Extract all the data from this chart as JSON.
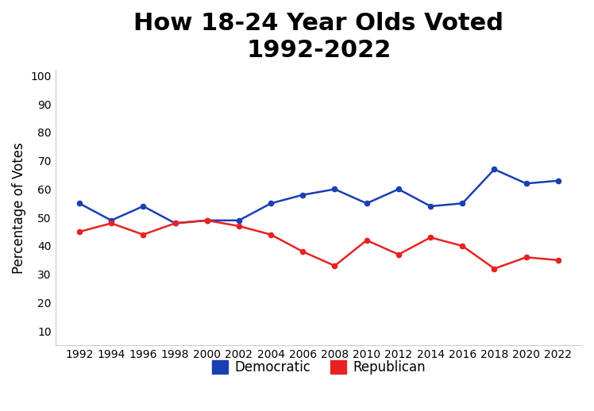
{
  "title": "How 18-24 Year Olds Voted\n1992-2022",
  "ylabel": "Percentage of Votes",
  "years": [
    1992,
    1994,
    1996,
    1998,
    2000,
    2002,
    2004,
    2006,
    2008,
    2010,
    2012,
    2014,
    2016,
    2018,
    2020,
    2022
  ],
  "democratic": [
    55,
    49,
    54,
    48,
    49,
    49,
    55,
    58,
    60,
    55,
    60,
    54,
    55,
    67,
    62,
    63
  ],
  "republican": [
    45,
    48,
    44,
    48,
    49,
    47,
    44,
    38,
    33,
    42,
    37,
    43,
    40,
    32,
    36,
    35
  ],
  "dem_color": "#1a3fb5",
  "rep_color": "#e82222",
  "background_color": "#ffffff",
  "title_fontsize": 22,
  "label_fontsize": 12,
  "tick_fontsize": 10,
  "legend_fontsize": 12,
  "ylim": [
    5,
    102
  ],
  "yticks": [
    10,
    20,
    30,
    40,
    50,
    60,
    70,
    80,
    90,
    100
  ],
  "xlim": [
    1990.5,
    2023.5
  ],
  "legend_labels": [
    "Democratic",
    "Republican"
  ]
}
